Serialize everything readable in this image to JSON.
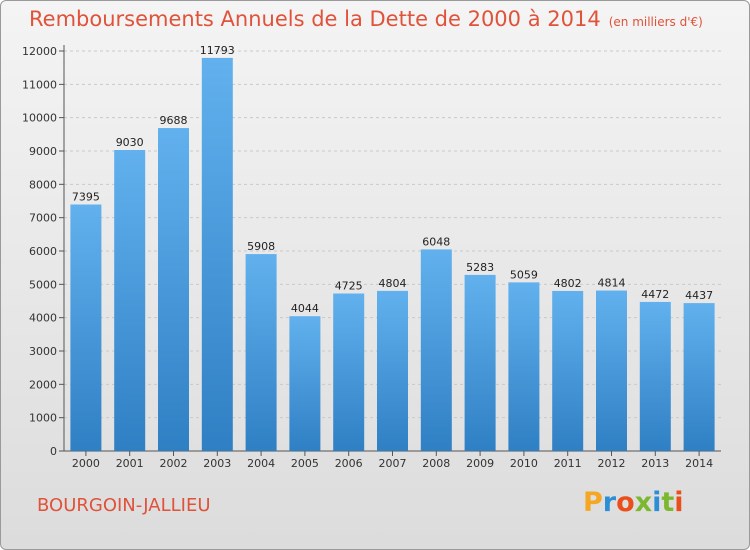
{
  "header": {
    "title": "Remboursements Annuels de la Dette de 2000 à 2014",
    "unit": "(en milliers d'€)"
  },
  "footer": {
    "town": "BOURGOIN-JALLIEU",
    "logo": "Proxiti",
    "logo_colors": [
      "#f5a623",
      "#2c8fd6",
      "#e94e1b",
      "#7cb82f",
      "#2c8fd6",
      "#7cb82f",
      "#e94e1b"
    ]
  },
  "colors": {
    "title": "#e0523a",
    "bar_top": "#62b1ee",
    "bar_bottom": "#2f7fc4",
    "grid": "#c9c9c9"
  },
  "chart_data": {
    "type": "bar",
    "title": "Remboursements Annuels de la Dette de 2000 à 2014",
    "subtitle": "(en milliers d'€)",
    "xlabel": "",
    "ylabel": "",
    "categories": [
      "2000",
      "2001",
      "2002",
      "2003",
      "2004",
      "2005",
      "2006",
      "2007",
      "2008",
      "2009",
      "2010",
      "2011",
      "2012",
      "2013",
      "2014"
    ],
    "values": [
      7395,
      9030,
      9688,
      11793,
      5908,
      4044,
      4725,
      4804,
      6048,
      5283,
      5059,
      4802,
      4814,
      4472,
      4437
    ],
    "ylim": [
      0,
      12000
    ],
    "yticks": [
      0,
      1000,
      2000,
      3000,
      4000,
      5000,
      6000,
      7000,
      8000,
      9000,
      10000,
      11000,
      12000
    ],
    "grid": true,
    "legend": "none",
    "show_value_labels": true
  }
}
